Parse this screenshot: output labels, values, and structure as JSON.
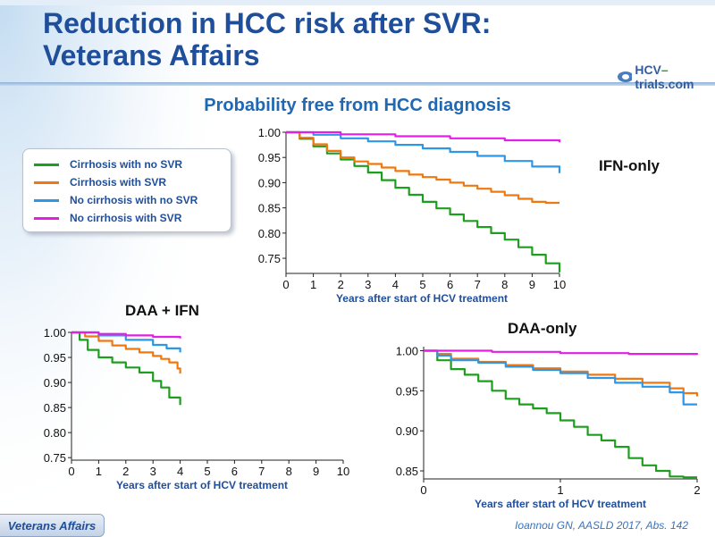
{
  "title_line1": "Reduction in HCC risk after SVR:",
  "title_line2": "Veterans Affairs",
  "logo_text_a": "HCV",
  "logo_text_dash": "–",
  "logo_text_b": "trials.com",
  "subtitle": "Probability free from HCC diagnosis",
  "legend": [
    {
      "label": "Cirrhosis with no SVR",
      "color": "#1e9e1e"
    },
    {
      "label": "Cirrhosis with SVR",
      "color": "#f07810"
    },
    {
      "label": "No cirrhosis with no SVR",
      "color": "#2e96e6"
    },
    {
      "label": "No cirrhosis with SVR",
      "color": "#e41ee4"
    }
  ],
  "footer_badge": "Veterans Affairs",
  "citation": "Ioannou GN, AASLD 2017, Abs. 142",
  "chart_data": [
    {
      "type": "line",
      "title": "IFN-only",
      "xlabel": "Years after start of HCV treatment",
      "ylabel": "",
      "xlim": [
        0,
        10
      ],
      "ylim": [
        0.72,
        1.0
      ],
      "xticks": [
        "0",
        "1",
        "2",
        "3",
        "4",
        "5",
        "6",
        "7",
        "8",
        "9",
        "10"
      ],
      "yticks": [
        "1.00",
        "0.95",
        "0.90",
        "0.85",
        "0.80",
        "0.75"
      ],
      "series": [
        {
          "name": "Cirrhosis with no SVR",
          "color": "#1e9e1e",
          "x": [
            0,
            0.5,
            1,
            1.5,
            2,
            2.5,
            3,
            3.5,
            4,
            4.5,
            5,
            5.5,
            6,
            6.5,
            7,
            7.5,
            8,
            8.5,
            9,
            9.5,
            10
          ],
          "y": [
            1.0,
            0.987,
            0.972,
            0.958,
            0.946,
            0.933,
            0.92,
            0.905,
            0.89,
            0.876,
            0.862,
            0.849,
            0.837,
            0.824,
            0.812,
            0.8,
            0.787,
            0.772,
            0.757,
            0.74,
            0.722
          ]
        },
        {
          "name": "Cirrhosis with SVR",
          "color": "#f07810",
          "x": [
            0,
            0.5,
            1,
            1.5,
            2,
            2.5,
            3,
            3.5,
            4,
            4.5,
            5,
            5.5,
            6,
            6.5,
            7,
            7.5,
            8,
            8.5,
            9,
            9.5,
            10
          ],
          "y": [
            1.0,
            0.989,
            0.976,
            0.963,
            0.95,
            0.942,
            0.937,
            0.93,
            0.923,
            0.916,
            0.911,
            0.906,
            0.9,
            0.894,
            0.888,
            0.882,
            0.875,
            0.868,
            0.862,
            0.86,
            0.86
          ]
        },
        {
          "name": "No cirrhosis with no SVR",
          "color": "#2e96e6",
          "x": [
            0,
            1,
            2,
            3,
            4,
            5,
            6,
            7,
            8,
            9,
            10
          ],
          "y": [
            1.0,
            0.995,
            0.988,
            0.982,
            0.975,
            0.968,
            0.961,
            0.953,
            0.943,
            0.932,
            0.919
          ]
        },
        {
          "name": "No cirrhosis with SVR",
          "color": "#e41ee4",
          "x": [
            0,
            2,
            4,
            6,
            8,
            10
          ],
          "y": [
            1.0,
            0.996,
            0.992,
            0.988,
            0.984,
            0.98
          ]
        }
      ]
    },
    {
      "type": "line",
      "title": "DAA + IFN",
      "xlabel": "Years after start of HCV treatment",
      "ylabel": "",
      "xlim": [
        0,
        10
      ],
      "ylim": [
        0.745,
        1.0
      ],
      "xticks": [
        "0",
        "1",
        "2",
        "3",
        "4",
        "5",
        "6",
        "7",
        "8",
        "9",
        "10"
      ],
      "yticks": [
        "1.00",
        "0.95",
        "0.90",
        "0.85",
        "0.80",
        "0.75"
      ],
      "series": [
        {
          "name": "Cirrhosis with no SVR",
          "color": "#1e9e1e",
          "x": [
            0,
            0.3,
            0.6,
            1,
            1.5,
            2,
            2.5,
            3,
            3.3,
            3.6,
            4
          ],
          "y": [
            1.0,
            0.985,
            0.965,
            0.95,
            0.94,
            0.93,
            0.92,
            0.903,
            0.89,
            0.87,
            0.855
          ]
        },
        {
          "name": "Cirrhosis with SVR",
          "color": "#f07810",
          "x": [
            0,
            0.5,
            1,
            1.5,
            2,
            2.5,
            3,
            3.3,
            3.6,
            3.9,
            4
          ],
          "y": [
            1.0,
            0.992,
            0.983,
            0.974,
            0.967,
            0.96,
            0.953,
            0.947,
            0.94,
            0.928,
            0.918
          ]
        },
        {
          "name": "No cirrhosis with no SVR",
          "color": "#2e96e6",
          "x": [
            0,
            1,
            2,
            3,
            3.5,
            4
          ],
          "y": [
            1.0,
            0.994,
            0.985,
            0.975,
            0.968,
            0.96
          ]
        },
        {
          "name": "No cirrhosis with SVR",
          "color": "#e41ee4",
          "x": [
            0,
            1,
            2,
            3,
            4
          ],
          "y": [
            1.0,
            0.997,
            0.994,
            0.991,
            0.988
          ]
        }
      ]
    },
    {
      "type": "line",
      "title": "DAA-only",
      "xlabel": "Years after start of HCV treatment",
      "ylabel": "",
      "xlim": [
        0,
        2
      ],
      "ylim": [
        0.84,
        1.005
      ],
      "xticks": [
        "0",
        "1",
        "2"
      ],
      "yticks": [
        "1.00",
        "0.95",
        "0.90",
        "0.85"
      ],
      "series": [
        {
          "name": "Cirrhosis with no SVR",
          "color": "#1e9e1e",
          "x": [
            0,
            0.1,
            0.2,
            0.3,
            0.4,
            0.5,
            0.6,
            0.7,
            0.8,
            0.9,
            1.0,
            1.1,
            1.2,
            1.3,
            1.4,
            1.5,
            1.6,
            1.7,
            1.8,
            1.9,
            2.0
          ],
          "y": [
            1.0,
            0.988,
            0.977,
            0.97,
            0.962,
            0.95,
            0.94,
            0.933,
            0.928,
            0.922,
            0.913,
            0.905,
            0.895,
            0.888,
            0.88,
            0.866,
            0.857,
            0.85,
            0.843,
            0.842,
            0.842
          ]
        },
        {
          "name": "Cirrhosis with SVR",
          "color": "#f07810",
          "x": [
            0,
            0.1,
            0.2,
            0.4,
            0.6,
            0.8,
            1.0,
            1.2,
            1.4,
            1.6,
            1.8,
            1.9,
            2.0
          ],
          "y": [
            1.0,
            0.996,
            0.99,
            0.986,
            0.982,
            0.978,
            0.974,
            0.97,
            0.965,
            0.96,
            0.953,
            0.947,
            0.943
          ]
        },
        {
          "name": "No cirrhosis with no SVR",
          "color": "#2e96e6",
          "x": [
            0,
            0.1,
            0.2,
            0.4,
            0.6,
            0.8,
            1.0,
            1.2,
            1.4,
            1.6,
            1.8,
            1.9,
            2.0
          ],
          "y": [
            1.0,
            0.994,
            0.988,
            0.985,
            0.98,
            0.976,
            0.972,
            0.966,
            0.96,
            0.955,
            0.948,
            0.933,
            0.933
          ]
        },
        {
          "name": "No cirrhosis with SVR",
          "color": "#e41ee4",
          "x": [
            0,
            0.5,
            1.0,
            1.5,
            2.0
          ],
          "y": [
            1.0,
            0.9985,
            0.997,
            0.996,
            0.995
          ]
        }
      ]
    }
  ]
}
